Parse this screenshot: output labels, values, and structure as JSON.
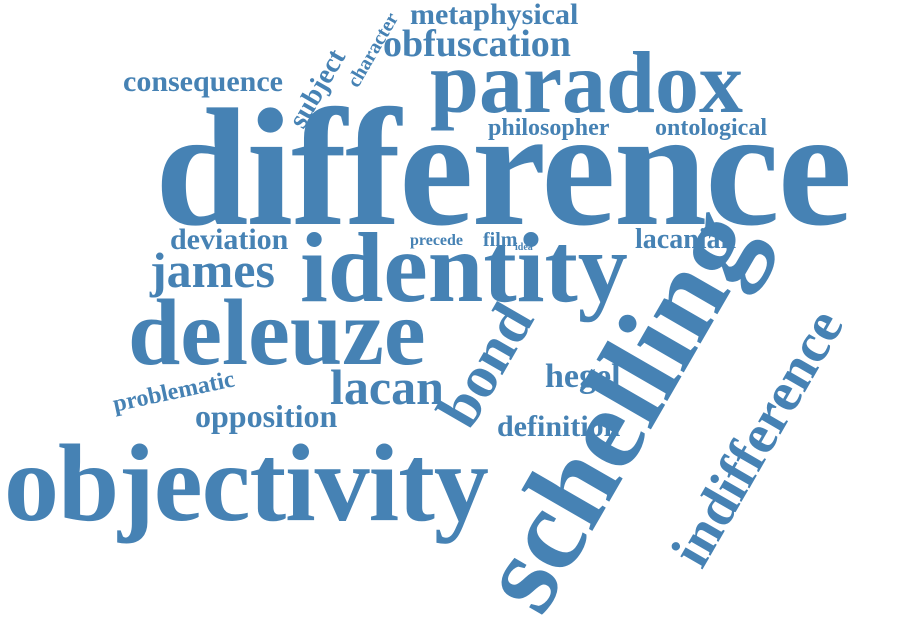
{
  "color": "#4682b4",
  "words": {
    "metaphysical": "metaphysical",
    "character": "character",
    "obfuscation": "obfuscation",
    "consequence": "consequence",
    "subject": "subject",
    "paradox": "paradox",
    "philosopher": "philosopher",
    "ontological": "ontological",
    "difference": "difference",
    "deviation": "deviation",
    "precede": "precede",
    "film": "film",
    "idea": "idea",
    "lacanian": "lacanian",
    "james": "james",
    "identity": "identity",
    "deleuze": "deleuze",
    "schelling": "schelling",
    "bond": "bond",
    "hegel": "hegel",
    "lacan": "lacan",
    "problematic": "problematic",
    "opposition": "opposition",
    "definition": "definition",
    "indifference": "indifference",
    "objectivity": "objectivity"
  }
}
